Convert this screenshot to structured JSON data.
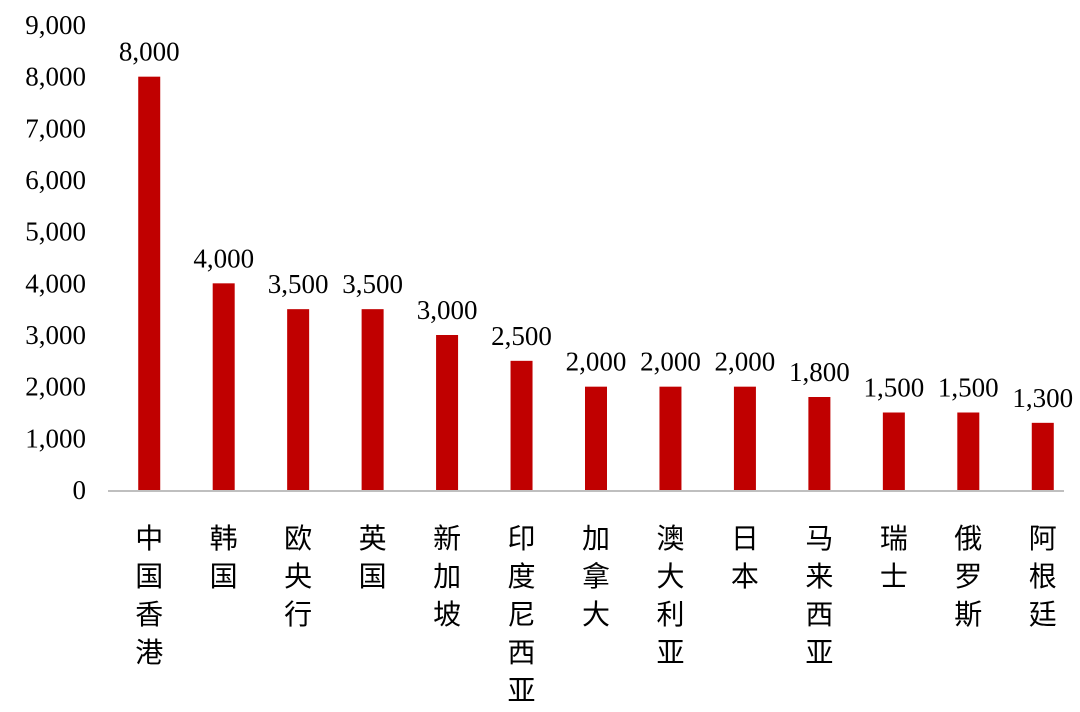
{
  "chart_data": {
    "type": "bar",
    "title": "",
    "xlabel": "",
    "ylabel": "",
    "categories": [
      "中国香港",
      "韩国",
      "欧央行",
      "英国",
      "新加坡",
      "印度尼西亚",
      "加拿大",
      "澳大利亚",
      "日本",
      "马来西亚",
      "瑞士",
      "俄罗斯",
      "阿根廷"
    ],
    "values": [
      8000,
      4000,
      3500,
      3500,
      3000,
      2500,
      2000,
      2000,
      2000,
      1800,
      1500,
      1500,
      1300
    ],
    "value_labels": [
      "8,000",
      "4,000",
      "3,500",
      "3,500",
      "3,000",
      "2,500",
      "2,000",
      "2,000",
      "2,000",
      "1,800",
      "1,500",
      "1,500",
      "1,300"
    ],
    "ylim": [
      0,
      9000
    ],
    "yticks": [
      0,
      1000,
      2000,
      3000,
      4000,
      5000,
      6000,
      7000,
      8000,
      9000
    ],
    "ytick_labels": [
      "0",
      "1,000",
      "2,000",
      "3,000",
      "4,000",
      "5,000",
      "6,000",
      "7,000",
      "8,000",
      "9,000"
    ],
    "grid": false,
    "legend": "none",
    "bar_color": "#C00000",
    "axis_color": "#BFBFBF"
  }
}
